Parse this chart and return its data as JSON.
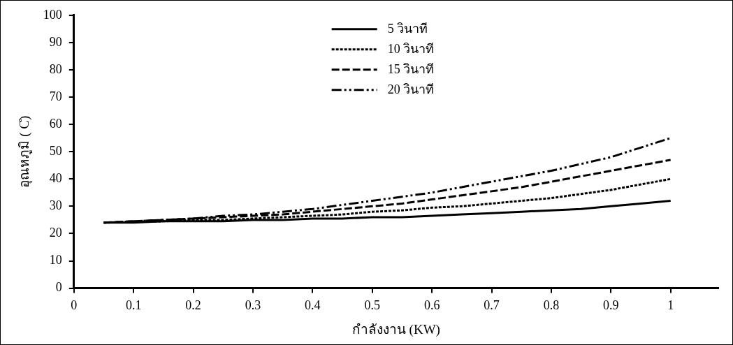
{
  "chart_data": {
    "type": "line",
    "xlabel": "กำลังงาน (KW)",
    "ylabel": "อุณหภูมิ ( C̊)",
    "x": [
      0.05,
      0.1,
      0.15,
      0.2,
      0.25,
      0.3,
      0.35,
      0.4,
      0.45,
      0.5,
      0.55,
      0.6,
      0.65,
      0.7,
      0.75,
      0.8,
      0.85,
      0.9,
      0.95,
      1.0
    ],
    "series": [
      {
        "name": "5 วินาที",
        "color": "#000000",
        "line_style": "solid",
        "values": [
          24,
          24,
          24.5,
          24.5,
          24.5,
          25,
          25,
          25.5,
          25.5,
          26,
          26,
          26.5,
          27,
          27.5,
          28,
          28.5,
          29,
          30,
          31,
          32
        ]
      },
      {
        "name": "10 วินาที",
        "color": "#000000",
        "line_style": "dotted",
        "values": [
          24,
          24.2,
          24.5,
          25,
          25,
          25.5,
          26,
          26.5,
          27,
          28,
          28.5,
          29.5,
          30,
          31,
          32,
          33,
          34.5,
          36,
          38,
          40
        ]
      },
      {
        "name": "15 วินาที",
        "color": "#000000",
        "line_style": "dashed",
        "values": [
          24,
          24.5,
          25,
          25.5,
          26,
          26.5,
          27,
          28,
          29,
          30,
          31,
          32.5,
          34,
          35.5,
          37,
          39,
          41,
          43,
          45,
          47
        ]
      },
      {
        "name": "20 วินาที",
        "color": "#000000",
        "line_style": "dashdot",
        "values": [
          24,
          24.5,
          25,
          25.5,
          26.5,
          27,
          28,
          29,
          30.5,
          32,
          33.5,
          35,
          37,
          39,
          41,
          43,
          45.5,
          48,
          51.5,
          55
        ]
      }
    ],
    "xlim": [
      0,
      1.08
    ],
    "xticks": [
      0,
      0.1,
      0.2,
      0.3,
      0.4,
      0.5,
      0.6,
      0.7,
      0.8,
      0.9,
      1
    ],
    "ylim": [
      0,
      100
    ],
    "yticks": [
      0,
      10,
      20,
      30,
      40,
      50,
      60,
      70,
      80,
      90,
      100
    ],
    "grid": false,
    "legend": "top",
    "marker": "none"
  }
}
